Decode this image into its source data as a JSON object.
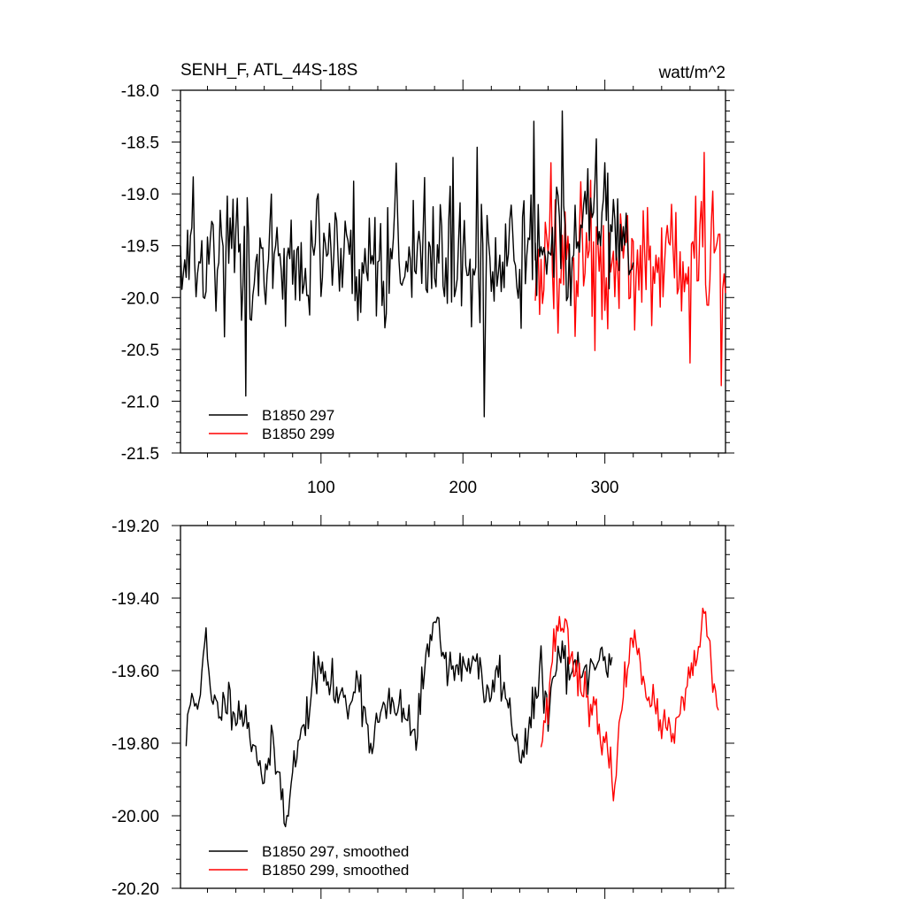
{
  "chart_data": [
    {
      "type": "line",
      "title": "SENH_F, ATL_44S-18S",
      "units": "watt/m^2",
      "xlim": [
        1,
        385
      ],
      "ylim": [
        -21.5,
        -18.0
      ],
      "x_ticks": [
        100,
        200,
        300
      ],
      "x_tick_labels": [
        "100",
        "200",
        "300"
      ],
      "y_ticks": [
        -18.0,
        -18.5,
        -19.0,
        -19.5,
        -20.0,
        -20.5,
        -21.0,
        -21.5
      ],
      "y_tick_labels": [
        "-18.0",
        "-18.5",
        "-19.0",
        "-19.5",
        "-20.0",
        "-20.5",
        "-21.0",
        "-21.5"
      ],
      "grid": false,
      "legend_position": "bottom-left",
      "series": [
        {
          "name": "B1850 297",
          "color": "#000000",
          "x_start": 1,
          "x_end": 251,
          "mean": -19.6,
          "amplitude": 0.42,
          "seed": 297,
          "extremes": [
            [
              215,
              -21.15
            ],
            [
              47,
              -20.95
            ],
            [
              250,
              -18.3
            ],
            [
              210,
              -18.55
            ]
          ]
        },
        {
          "name": "B1850 299",
          "color": "#ff0000",
          "x_start": 251,
          "x_end": 385,
          "mean": -19.65,
          "amplitude": 0.42,
          "seed": 299,
          "extremes": [
            [
              382,
              -20.85
            ],
            [
              370,
              -18.6
            ],
            [
              262,
              -18.7
            ]
          ]
        }
      ],
      "overlay": {
        "name": "B1850 297",
        "color": "#000000",
        "x_start": 251,
        "x_end": 320,
        "mean": -19.5,
        "amplitude": 0.45,
        "seed": 2971,
        "extremes": [
          [
            270,
            -18.2
          ],
          [
            300,
            -18.7
          ]
        ]
      }
    },
    {
      "type": "line",
      "xlim": [
        1,
        385
      ],
      "ylim": [
        -20.2,
        -19.2
      ],
      "y_ticks": [
        -19.2,
        -19.4,
        -19.6,
        -19.8,
        -20.0,
        -20.2
      ],
      "y_tick_labels": [
        "-19.20",
        "-19.40",
        "-19.60",
        "-19.80",
        "-20.00",
        "-20.20"
      ],
      "x_ticks": [
        100,
        200,
        300
      ],
      "grid": false,
      "legend_position": "bottom-left",
      "series": [
        {
          "name": "B1850 297, smoothed",
          "color": "#000000",
          "x_start": 5,
          "x_end": 305,
          "noise": 0.03,
          "seed": 11,
          "anchors": [
            [
              5,
              -19.8
            ],
            [
              8,
              -19.68
            ],
            [
              15,
              -19.66
            ],
            [
              19,
              -19.52
            ],
            [
              23,
              -19.7
            ],
            [
              30,
              -19.7
            ],
            [
              35,
              -19.68
            ],
            [
              45,
              -19.72
            ],
            [
              55,
              -19.82
            ],
            [
              60,
              -19.9
            ],
            [
              65,
              -19.82
            ],
            [
              70,
              -19.88
            ],
            [
              75,
              -20.0
            ],
            [
              80,
              -19.88
            ],
            [
              90,
              -19.72
            ],
            [
              95,
              -19.62
            ],
            [
              100,
              -19.6
            ],
            [
              110,
              -19.66
            ],
            [
              120,
              -19.7
            ],
            [
              125,
              -19.6
            ],
            [
              130,
              -19.7
            ],
            [
              135,
              -19.8
            ],
            [
              142,
              -19.72
            ],
            [
              150,
              -19.7
            ],
            [
              160,
              -19.72
            ],
            [
              167,
              -19.8
            ],
            [
              172,
              -19.62
            ],
            [
              180,
              -19.42
            ],
            [
              185,
              -19.55
            ],
            [
              190,
              -19.58
            ],
            [
              200,
              -19.6
            ],
            [
              210,
              -19.55
            ],
            [
              215,
              -19.7
            ],
            [
              220,
              -19.65
            ],
            [
              226,
              -19.6
            ],
            [
              235,
              -19.75
            ],
            [
              240,
              -19.82
            ],
            [
              245,
              -19.8
            ],
            [
              250,
              -19.7
            ],
            [
              255,
              -19.6
            ],
            [
              260,
              -19.72
            ],
            [
              265,
              -19.6
            ],
            [
              270,
              -19.55
            ],
            [
              275,
              -19.6
            ],
            [
              285,
              -19.62
            ],
            [
              292,
              -19.58
            ],
            [
              300,
              -19.58
            ],
            [
              305,
              -19.55
            ]
          ]
        },
        {
          "name": "B1850 299, smoothed",
          "color": "#ff0000",
          "x_start": 255,
          "x_end": 380,
          "noise": 0.028,
          "seed": 23,
          "anchors": [
            [
              255,
              -19.78
            ],
            [
              260,
              -19.7
            ],
            [
              263,
              -19.55
            ],
            [
              268,
              -19.45
            ],
            [
              275,
              -19.52
            ],
            [
              280,
              -19.6
            ],
            [
              285,
              -19.65
            ],
            [
              292,
              -19.7
            ],
            [
              297,
              -19.8
            ],
            [
              303,
              -19.85
            ],
            [
              307,
              -19.9
            ],
            [
              312,
              -19.7
            ],
            [
              317,
              -19.55
            ],
            [
              322,
              -19.5
            ],
            [
              327,
              -19.6
            ],
            [
              332,
              -19.7
            ],
            [
              337,
              -19.72
            ],
            [
              342,
              -19.75
            ],
            [
              347,
              -19.8
            ],
            [
              352,
              -19.72
            ],
            [
              357,
              -19.68
            ],
            [
              362,
              -19.6
            ],
            [
              367,
              -19.5
            ],
            [
              370,
              -19.45
            ],
            [
              375,
              -19.6
            ],
            [
              380,
              -19.72
            ],
            [
              385,
              -19.78
            ]
          ]
        }
      ]
    }
  ]
}
